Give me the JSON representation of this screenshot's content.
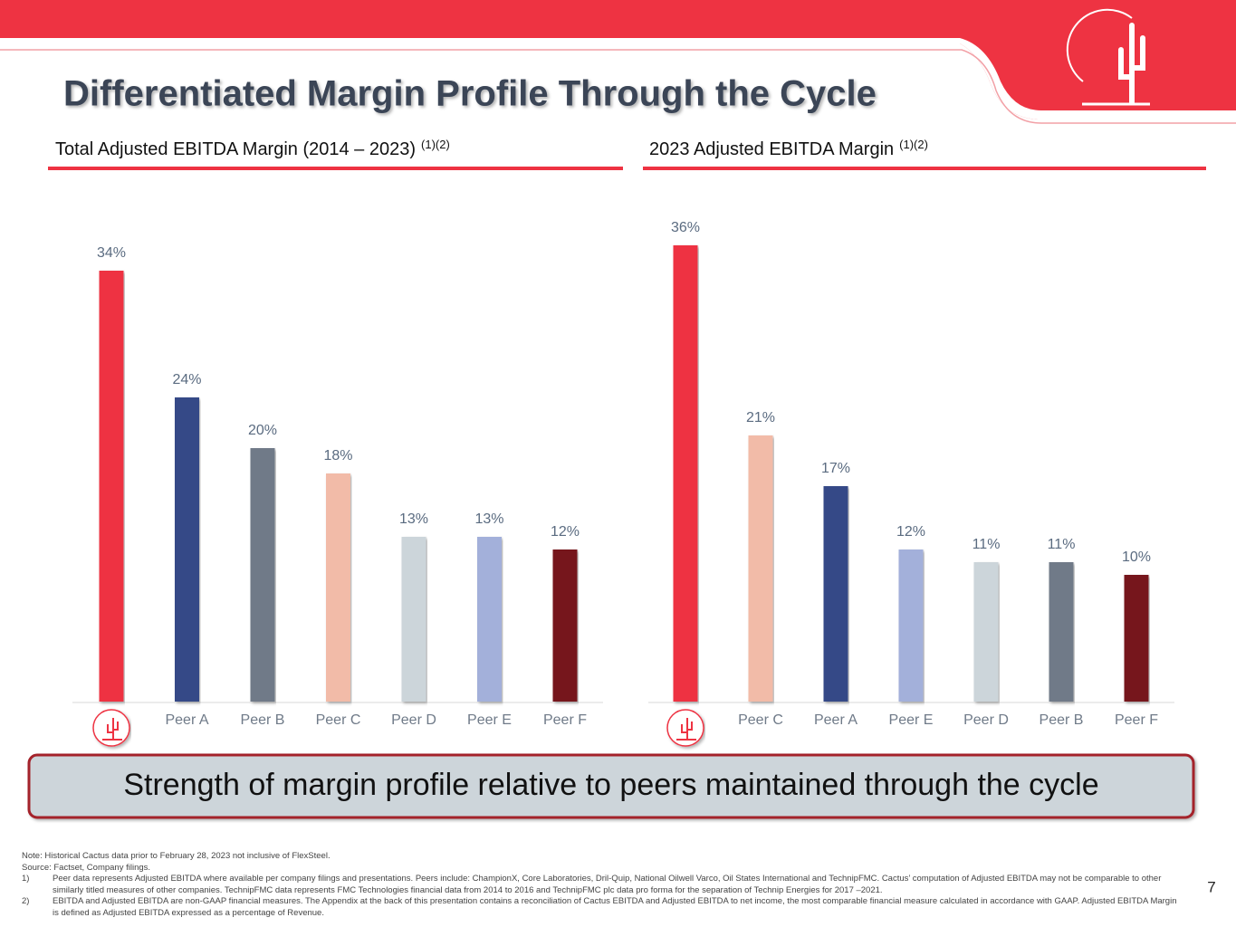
{
  "header": {
    "title": "Differentiated Margin Profile Through the Cycle"
  },
  "chart_data": [
    {
      "type": "bar",
      "title": "Total Adjusted EBITDA Margin (2014 – 2023)",
      "title_note": "(1)(2)",
      "categories": [
        null,
        "Peer A",
        "Peer B",
        "Peer C",
        "Peer D",
        "Peer E",
        "Peer F"
      ],
      "values": [
        34,
        24,
        20,
        18,
        13,
        13,
        12
      ],
      "value_labels": [
        "34%",
        "24%",
        "20%",
        "18%",
        "13%",
        "13%",
        "12%"
      ],
      "colors": [
        "#ee3342",
        "#364a87",
        "#6f7a88",
        "#f2bba8",
        "#ccd5da",
        "#a3b0da",
        "#76161b"
      ]
    },
    {
      "type": "bar",
      "title": "2023 Adjusted EBITDA Margin",
      "title_note": "(1)(2)",
      "categories": [
        null,
        "Peer C",
        "Peer A",
        "Peer E",
        "Peer D",
        "Peer B",
        "Peer F"
      ],
      "values": [
        36,
        21,
        17,
        12,
        11,
        11,
        10
      ],
      "value_labels": [
        "36%",
        "21%",
        "17%",
        "12%",
        "11%",
        "11%",
        "10%"
      ],
      "colors": [
        "#ee3342",
        "#f2bba8",
        "#364a87",
        "#a3b0da",
        "#ccd5da",
        "#6f7a88",
        "#76161b"
      ]
    }
  ],
  "callout": "Strength of margin profile relative to peers maintained through the cycle",
  "footnotes": {
    "note": "Note: Historical Cactus data prior to February 28, 2023 not inclusive of FlexSteel.",
    "source": "Source: Factset, Company filings.",
    "items": [
      {
        "marker": "1)",
        "text": "Peer data represents Adjusted EBITDA where available per company filings and presentations. Peers include: ChampionX, Core Laboratories, Dril-Quip, National Oilwell Varco, Oil States International and TechnipFMC. Cactus’ computation of Adjusted EBITDA may not be comparable to other similarly titled measures of other companies. TechnipFMC data represents FMC Technologies financial data from 2014 to 2016 and TechnipFMC plc data pro forma for the separation of Technip Energies for 2017 –2021."
      },
      {
        "marker": "2)",
        "text": "EBITDA and Adjusted EBITDA are non-GAAP financial measures. The Appendix at the back of this presentation contains a reconciliation of Cactus EBITDA and Adjusted EBITDA to net income, the most comparable financial measure calculated in accordance with GAAP. Adjusted EBITDA Margin is defined as Adjusted EBITDA expressed as a percentage of Revenue."
      }
    ]
  },
  "page_number": 7
}
